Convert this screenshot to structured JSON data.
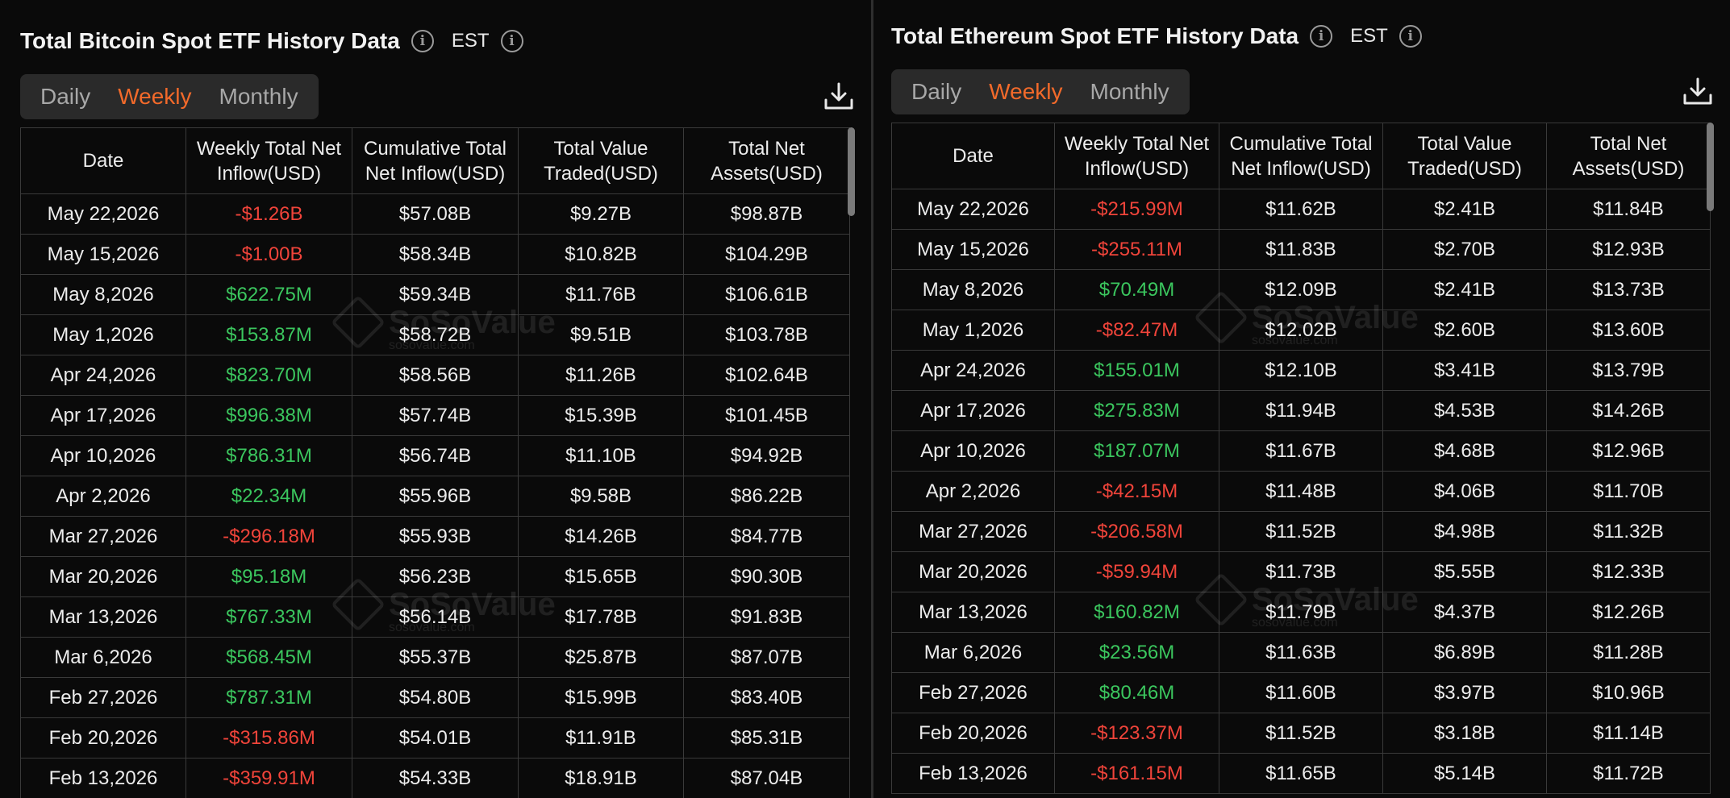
{
  "btc": {
    "title": "Total Bitcoin Spot ETF History Data",
    "tz": "EST",
    "tabs": [
      "Daily",
      "Weekly",
      "Monthly"
    ],
    "active_tab": 1,
    "headers": [
      "Date",
      "Weekly Total Net Inflow(USD)",
      "Cumulative Total Net Inflow(USD)",
      "Total Value Traded(USD)",
      "Total Net Assets(USD)"
    ],
    "rows": [
      [
        "May 22,2026",
        "-$1.26B",
        "$57.08B",
        "$9.27B",
        "$98.87B"
      ],
      [
        "May 15,2026",
        "-$1.00B",
        "$58.34B",
        "$10.82B",
        "$104.29B"
      ],
      [
        "May 8,2026",
        "$622.75M",
        "$59.34B",
        "$11.76B",
        "$106.61B"
      ],
      [
        "May 1,2026",
        "$153.87M",
        "$58.72B",
        "$9.51B",
        "$103.78B"
      ],
      [
        "Apr 24,2026",
        "$823.70M",
        "$58.56B",
        "$11.26B",
        "$102.64B"
      ],
      [
        "Apr 17,2026",
        "$996.38M",
        "$57.74B",
        "$15.39B",
        "$101.45B"
      ],
      [
        "Apr 10,2026",
        "$786.31M",
        "$56.74B",
        "$11.10B",
        "$94.92B"
      ],
      [
        "Apr 2,2026",
        "$22.34M",
        "$55.96B",
        "$9.58B",
        "$86.22B"
      ],
      [
        "Mar 27,2026",
        "-$296.18M",
        "$55.93B",
        "$14.26B",
        "$84.77B"
      ],
      [
        "Mar 20,2026",
        "$95.18M",
        "$56.23B",
        "$15.65B",
        "$90.30B"
      ],
      [
        "Mar 13,2026",
        "$767.33M",
        "$56.14B",
        "$17.78B",
        "$91.83B"
      ],
      [
        "Mar 6,2026",
        "$568.45M",
        "$55.37B",
        "$25.87B",
        "$87.07B"
      ],
      [
        "Feb 27,2026",
        "$787.31M",
        "$54.80B",
        "$15.99B",
        "$83.40B"
      ],
      [
        "Feb 20,2026",
        "-$315.86M",
        "$54.01B",
        "$11.91B",
        "$85.31B"
      ],
      [
        "Feb 13,2026",
        "-$359.91M",
        "$54.33B",
        "$18.91B",
        "$87.04B"
      ]
    ]
  },
  "eth": {
    "title": "Total Ethereum Spot ETF History Data",
    "tz": "EST",
    "tabs": [
      "Daily",
      "Weekly",
      "Monthly"
    ],
    "active_tab": 1,
    "headers": [
      "Date",
      "Weekly Total Net Inflow(USD)",
      "Cumulative Total Net Inflow(USD)",
      "Total Value Traded(USD)",
      "Total Net Assets(USD)"
    ],
    "rows": [
      [
        "May 22,2026",
        "-$215.99M",
        "$11.62B",
        "$2.41B",
        "$11.84B"
      ],
      [
        "May 15,2026",
        "-$255.11M",
        "$11.83B",
        "$2.70B",
        "$12.93B"
      ],
      [
        "May 8,2026",
        "$70.49M",
        "$12.09B",
        "$2.41B",
        "$13.73B"
      ],
      [
        "May 1,2026",
        "-$82.47M",
        "$12.02B",
        "$2.60B",
        "$13.60B"
      ],
      [
        "Apr 24,2026",
        "$155.01M",
        "$12.10B",
        "$3.41B",
        "$13.79B"
      ],
      [
        "Apr 17,2026",
        "$275.83M",
        "$11.94B",
        "$4.53B",
        "$14.26B"
      ],
      [
        "Apr 10,2026",
        "$187.07M",
        "$11.67B",
        "$4.68B",
        "$12.96B"
      ],
      [
        "Apr 2,2026",
        "-$42.15M",
        "$11.48B",
        "$4.06B",
        "$11.70B"
      ],
      [
        "Mar 27,2026",
        "-$206.58M",
        "$11.52B",
        "$4.98B",
        "$11.32B"
      ],
      [
        "Mar 20,2026",
        "-$59.94M",
        "$11.73B",
        "$5.55B",
        "$12.33B"
      ],
      [
        "Mar 13,2026",
        "$160.82M",
        "$11.79B",
        "$4.37B",
        "$12.26B"
      ],
      [
        "Mar 6,2026",
        "$23.56M",
        "$11.63B",
        "$6.89B",
        "$11.28B"
      ],
      [
        "Feb 27,2026",
        "$80.46M",
        "$11.60B",
        "$3.97B",
        "$10.96B"
      ],
      [
        "Feb 20,2026",
        "-$123.37M",
        "$11.52B",
        "$3.18B",
        "$11.14B"
      ],
      [
        "Feb 13,2026",
        "-$161.15M",
        "$11.65B",
        "$5.14B",
        "$11.72B"
      ]
    ]
  },
  "watermark": {
    "text": "SoSoValue",
    "sub": "sosovalue.com"
  },
  "colors": {
    "negative": "#f0443a",
    "positive": "#3bc65e",
    "accent": "#f36a2a"
  },
  "icons": {
    "info": "info-icon",
    "download": "download-icon"
  }
}
